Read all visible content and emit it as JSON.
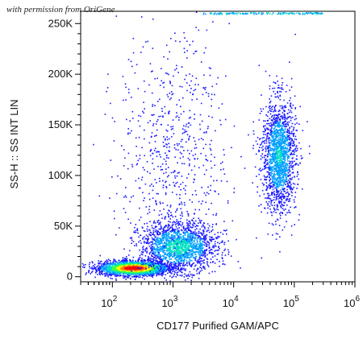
{
  "watermark": "with permission from OriGene",
  "chart_data": {
    "type": "scatter",
    "plot_style": "flow-cytometry density dot plot (pseudocolor)",
    "xlabel": "CD177 Purified GAM/APC",
    "ylabel": "SS-H :: SS INT LIN",
    "x_scale": "log",
    "xlim": [
      30,
      1000000
    ],
    "ylim": [
      -5000,
      262144
    ],
    "x_ticks": [
      {
        "value": 100,
        "base": "10",
        "exp": "2"
      },
      {
        "value": 1000,
        "base": "10",
        "exp": "3"
      },
      {
        "value": 10000,
        "base": "10",
        "exp": "4"
      },
      {
        "value": 100000,
        "base": "10",
        "exp": "5"
      },
      {
        "value": 1000000,
        "base": "10",
        "exp": "6"
      }
    ],
    "y_ticks": [
      {
        "value": 0,
        "label": "0"
      },
      {
        "value": 50000,
        "label": "50K"
      },
      {
        "value": 100000,
        "label": "100K"
      },
      {
        "value": 150000,
        "label": "150K"
      },
      {
        "value": 200000,
        "label": "200K"
      },
      {
        "value": 250000,
        "label": "250K"
      }
    ],
    "populations": [
      {
        "x_center": 220,
        "y_center": 9000,
        "x_spread_decades": 0.28,
        "y_spread": 3500,
        "relative_density": 1.0
      },
      {
        "x_center": 1200,
        "y_center": 30000,
        "x_spread_decades": 0.32,
        "y_spread": 12000,
        "relative_density": 0.35
      },
      {
        "x_center": 55000,
        "y_center": 120000,
        "x_spread_decades": 0.14,
        "y_spread": 28000,
        "relative_density": 0.3
      },
      {
        "x_center": 1000,
        "y_center": 120000,
        "x_spread_decades": 0.45,
        "y_spread": 60000,
        "relative_density": 0.08
      }
    ],
    "density_colors": [
      "#1a1aff",
      "#00a0ff",
      "#00e0c0",
      "#40ff40",
      "#ffff00",
      "#ff8000",
      "#ff0000"
    ],
    "grid": false,
    "legend": "none"
  }
}
